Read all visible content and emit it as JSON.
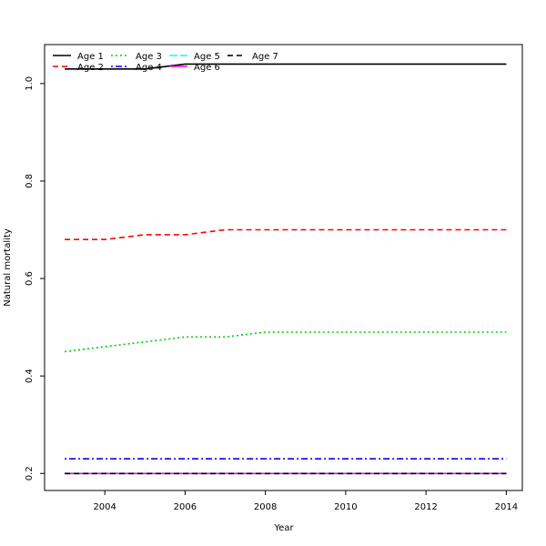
{
  "chart_data": {
    "type": "line",
    "title": "",
    "xlabel": "Year",
    "ylabel": "Natural mortality",
    "xlim": [
      2002.5,
      2014.4
    ],
    "ylim": [
      0.165,
      1.08
    ],
    "x_ticks": [
      2004,
      2006,
      2008,
      2010,
      2012,
      2014
    ],
    "y_ticks": [
      0.2,
      0.4,
      0.6,
      0.8,
      1.0
    ],
    "x_tick_labels": [
      "2004",
      "2006",
      "2008",
      "2010",
      "2012",
      "2014"
    ],
    "y_tick_labels": [
      "0.2",
      "0.4",
      "0.6",
      "0.8",
      "1.0"
    ],
    "x": [
      2003,
      2004,
      2005,
      2006,
      2007,
      2008,
      2009,
      2010,
      2011,
      2012,
      2013,
      2014
    ],
    "legend_placement": "top-left",
    "grid": false,
    "series": [
      {
        "name": "Age 1",
        "color": "#000000",
        "dash": "solid",
        "values": [
          1.03,
          1.03,
          1.03,
          1.04,
          1.04,
          1.04,
          1.04,
          1.04,
          1.04,
          1.04,
          1.04,
          1.04
        ]
      },
      {
        "name": "Age 2",
        "color": "#ff0000",
        "dash": "dashed",
        "values": [
          0.68,
          0.68,
          0.69,
          0.69,
          0.7,
          0.7,
          0.7,
          0.7,
          0.7,
          0.7,
          0.7,
          0.7
        ]
      },
      {
        "name": "Age 3",
        "color": "#00cd00",
        "dash": "dotted",
        "values": [
          0.45,
          0.46,
          0.47,
          0.48,
          0.48,
          0.49,
          0.49,
          0.49,
          0.49,
          0.49,
          0.49,
          0.49
        ]
      },
      {
        "name": "Age 4",
        "color": "#0000ff",
        "dash": "dotdash",
        "values": [
          0.23,
          0.23,
          0.23,
          0.23,
          0.23,
          0.23,
          0.23,
          0.23,
          0.23,
          0.23,
          0.23,
          0.23
        ]
      },
      {
        "name": "Age 5",
        "color": "#00ffff",
        "dash": "longdash",
        "values": [
          0.2,
          0.2,
          0.2,
          0.2,
          0.2,
          0.2,
          0.2,
          0.2,
          0.2,
          0.2,
          0.2,
          0.2
        ]
      },
      {
        "name": "Age 6",
        "color": "#ff00ff",
        "dash": "solid",
        "values": [
          0.2,
          0.2,
          0.2,
          0.2,
          0.2,
          0.2,
          0.2,
          0.2,
          0.2,
          0.2,
          0.2,
          0.2
        ]
      },
      {
        "name": "Age 7",
        "color": "#000000",
        "dash": "dashed",
        "values": [
          0.2,
          0.2,
          0.2,
          0.2,
          0.2,
          0.2,
          0.2,
          0.2,
          0.2,
          0.2,
          0.2,
          0.2
        ]
      }
    ]
  }
}
